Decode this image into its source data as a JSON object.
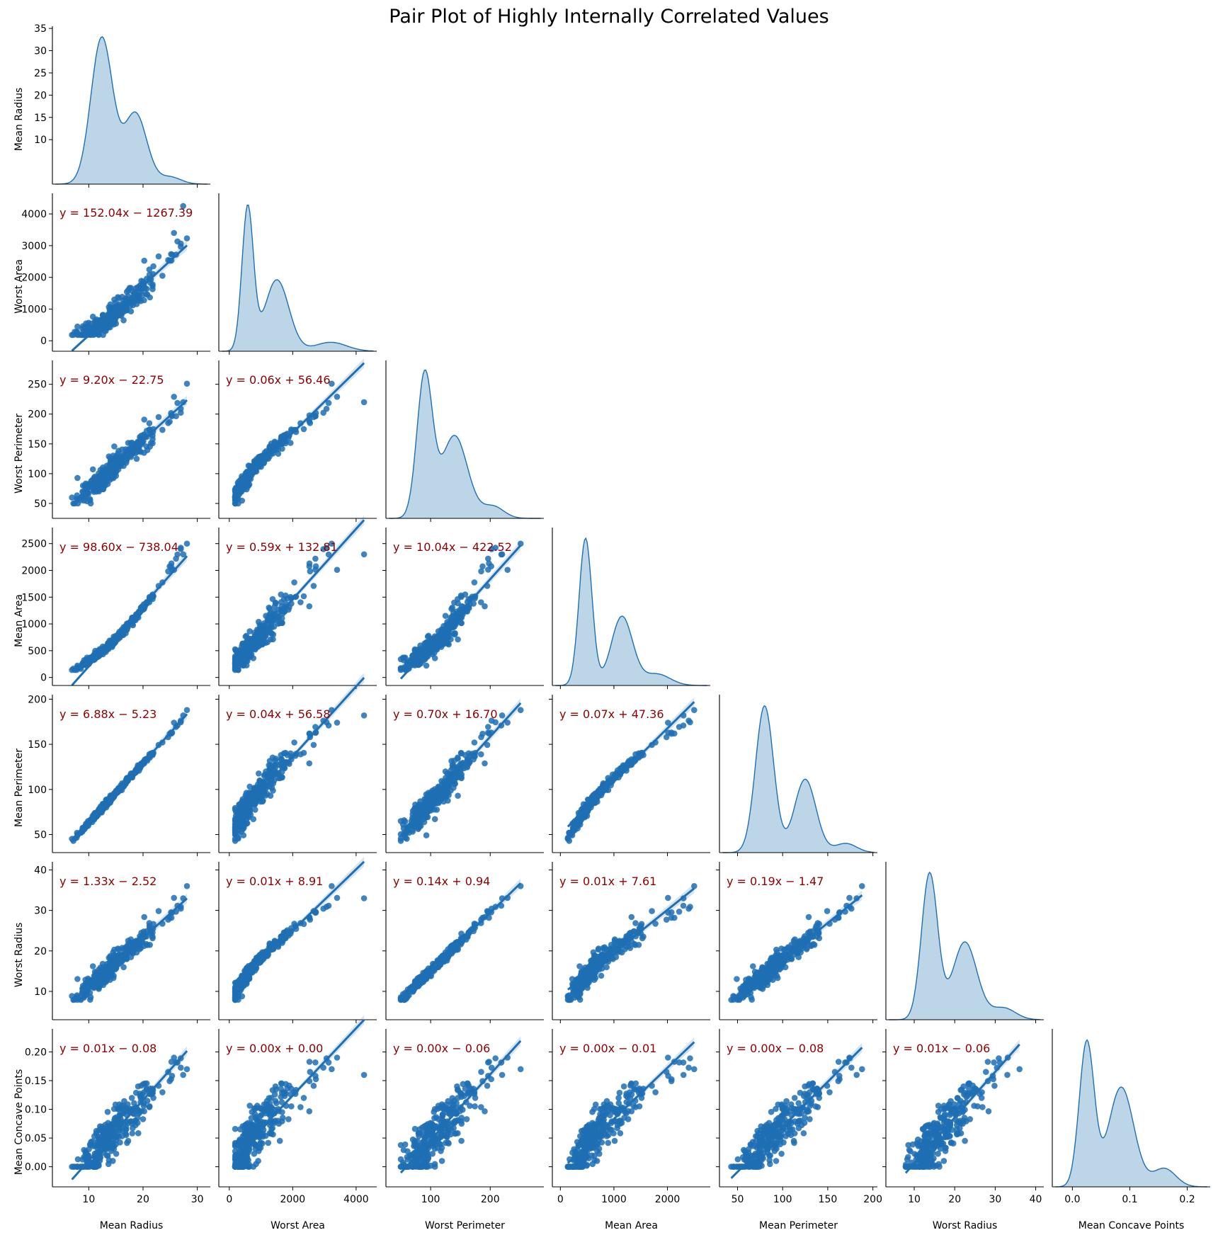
{
  "chart_data": {
    "type": "scatter",
    "title": "Pair Plot of Highly Internally Correlated Values",
    "variables": [
      {
        "name": "Mean Radius",
        "lim": [
          3.3,
          32.4
        ],
        "ticks": [
          10,
          20,
          30
        ],
        "yticks": [
          10,
          15,
          20,
          25,
          30,
          35
        ],
        "kde": {
          "ymax": 35.5,
          "peak": 12.6,
          "stats": [
            12.4,
            2.0,
            0.62,
            18.6,
            2.1,
            0.3,
            25.0,
            2.0,
            0.03
          ]
        }
      },
      {
        "name": "Worst Area",
        "lim": [
          -330,
          4650
        ],
        "ticks": [
          0,
          2000,
          4000
        ],
        "yticks": [
          0,
          1000,
          2000,
          3000,
          4000
        ],
        "kde": {
          "ymax": 4400,
          "peak": 590,
          "stats": [
            580,
            180,
            0.64,
            1500,
            380,
            0.32,
            3200,
            500,
            0.04
          ]
        }
      },
      {
        "name": "Worst Perimeter",
        "lim": [
          25,
          290
        ],
        "ticks": [
          100,
          200
        ],
        "yticks": [
          50,
          100,
          150,
          200,
          250,
          300
        ],
        "kde": {
          "ymax": 320,
          "peak": 93,
          "stats": [
            90,
            13,
            0.6,
            140,
            22,
            0.35,
            205,
            18,
            0.05
          ]
        }
      },
      {
        "name": "Mean Area",
        "lim": [
          -150,
          2800
        ],
        "ticks": [
          0,
          1000,
          2000
        ],
        "yticks": [
          0,
          500,
          1000,
          1500,
          2000,
          2500
        ],
        "kde": {
          "ymax": 2850,
          "peak": 480,
          "stats": [
            470,
            120,
            0.64,
            1150,
            200,
            0.3,
            1800,
            250,
            0.05
          ]
        }
      },
      {
        "name": "Mean Perimeter",
        "lim": [
          30,
          205
        ],
        "ticks": [
          50,
          100,
          150,
          200
        ],
        "yticks": [
          50,
          100,
          150,
          200
        ],
        "kde": {
          "ymax": 240,
          "peak": 80,
          "stats": [
            80,
            10,
            0.64,
            125,
            12,
            0.32,
            170,
            12,
            0.04
          ]
        }
      },
      {
        "name": "Worst Radius",
        "lim": [
          3,
          42
        ],
        "ticks": [
          10,
          20,
          30,
          40
        ],
        "yticks": [
          10,
          20,
          30,
          40
        ],
        "kde": {
          "ymax": 47,
          "peak": 14,
          "stats": [
            13.8,
            2.0,
            0.62,
            22.5,
            3.0,
            0.33,
            32,
            3,
            0.05
          ]
        }
      },
      {
        "name": "Mean Concave Points",
        "lim": [
          -0.035,
          0.24
        ],
        "ticks": [
          0.0,
          0.1,
          0.2
        ],
        "yticks": [
          0.0,
          0.05,
          0.1,
          0.15,
          0.2,
          0.25
        ],
        "kde": {
          "ymax": 0.27,
          "peak": 0.025,
          "stats": [
            0.025,
            0.013,
            0.55,
            0.085,
            0.022,
            0.38,
            0.16,
            0.02,
            0.07
          ]
        }
      }
    ],
    "equations": [
      [
        "",
        "",
        "",
        "",
        "",
        "",
        ""
      ],
      [
        "y = 152.04x − 1267.39",
        "",
        "",
        "",
        "",
        "",
        ""
      ],
      [
        "y = 9.20x − 22.75",
        "y = 0.06x + 56.46",
        "",
        "",
        "",
        "",
        ""
      ],
      [
        "y = 98.60x − 738.04",
        "y = 0.59x + 132.81",
        "y = 10.04x − 422.52",
        "",
        "",
        "",
        ""
      ],
      [
        "y = 6.88x − 5.23",
        "y = 0.04x + 56.58",
        "y = 0.70x + 16.70",
        "y = 0.07x + 47.36",
        "",
        "",
        ""
      ],
      [
        "y = 1.33x − 2.52",
        "y = 0.01x + 8.91",
        "y = 0.14x + 0.94",
        "y = 0.01x + 7.61",
        "y = 0.19x − 1.47",
        "",
        ""
      ],
      [
        "y = 0.01x − 0.08",
        "y = 0.00x + 0.00",
        "y = 0.00x − 0.06",
        "y = 0.00x − 0.01",
        "y = 0.00x − 0.08",
        "y = 0.01x − 0.06",
        ""
      ]
    ],
    "series_color": "#1f6fb4",
    "kde_fill": "#bcd6e8",
    "equation_color": "#8b0000",
    "legend": "none",
    "grid": false
  }
}
